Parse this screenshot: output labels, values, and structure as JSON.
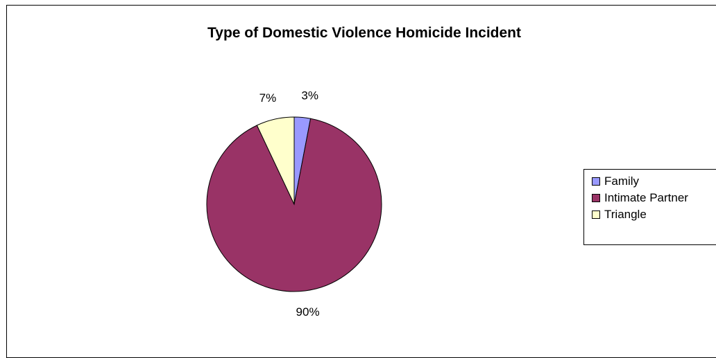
{
  "chart_data": {
    "type": "pie",
    "title": "Type of Domestic Violence Homicide Incident",
    "categories": [
      "Family",
      "Intimate Partner",
      "Triangle"
    ],
    "values": [
      3,
      90,
      7
    ],
    "data_labels": [
      "3%",
      "90%",
      "7%"
    ],
    "colors": [
      "#9999ff",
      "#993366",
      "#ffffcc"
    ],
    "legend_placement": "right",
    "start_angle_deg": 0,
    "direction": "clockwise"
  }
}
